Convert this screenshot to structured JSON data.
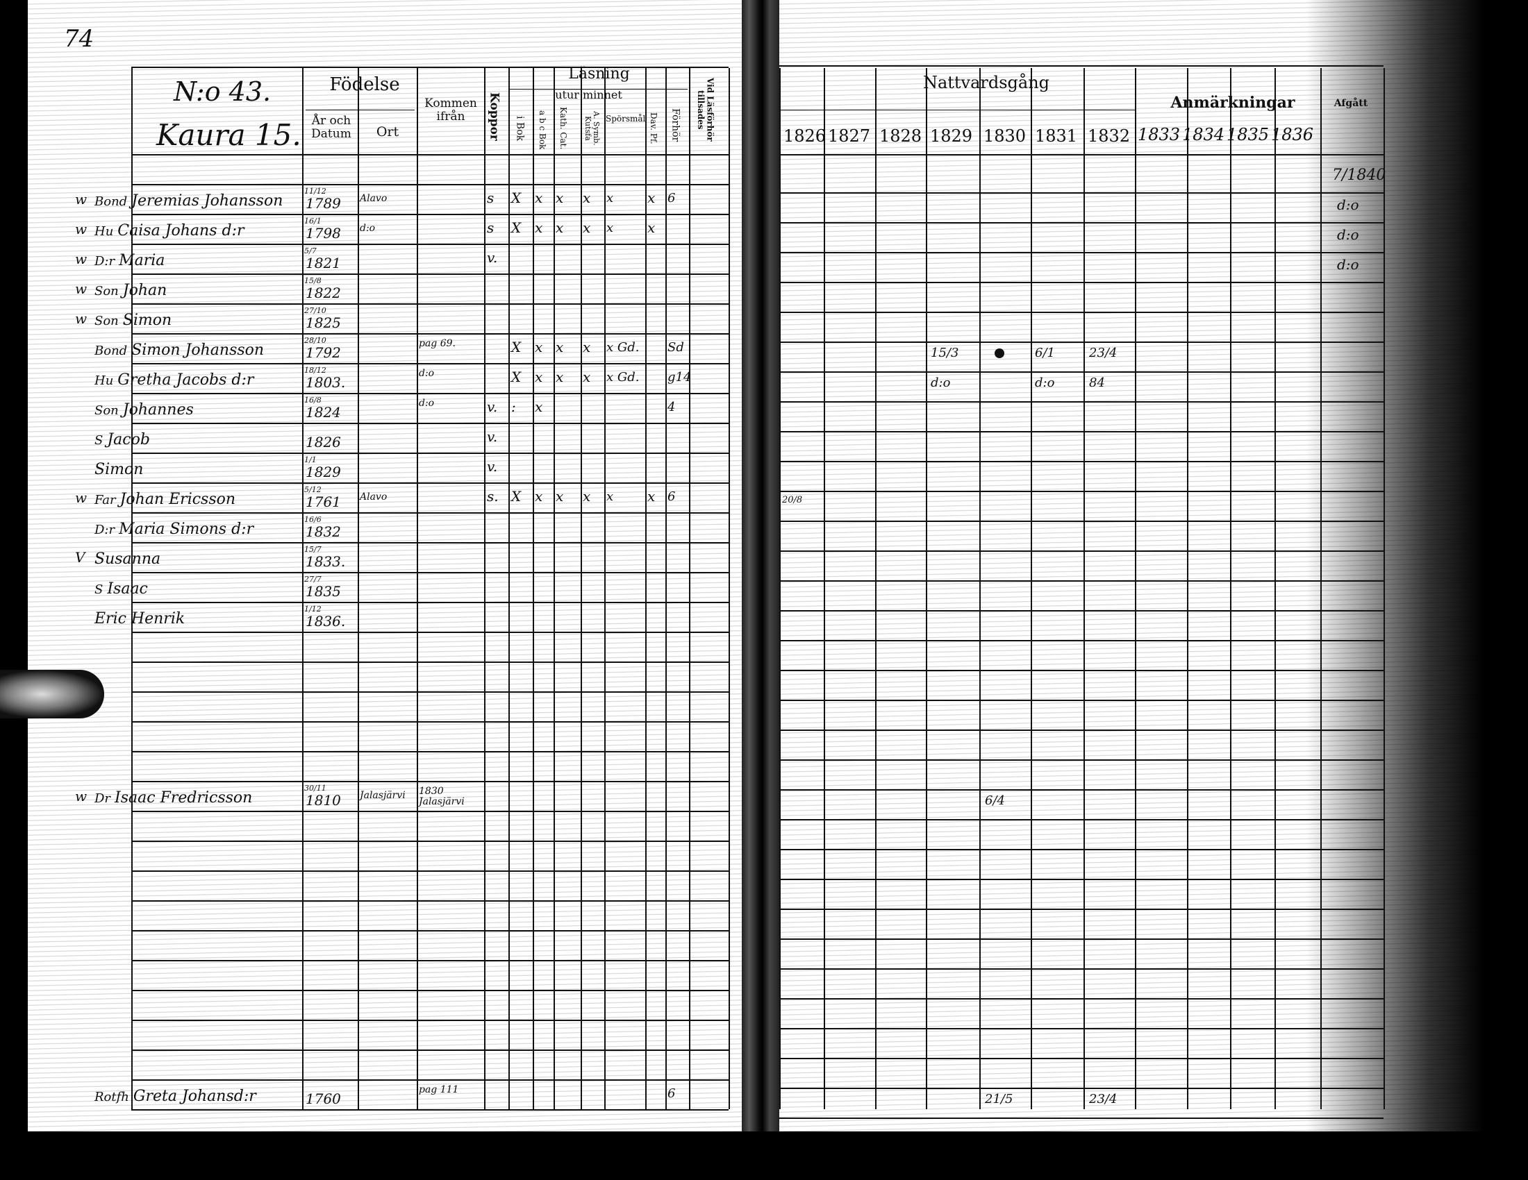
{
  "page_number": "74",
  "left_page": {
    "household_no": "N:o 43.",
    "farm": "Kaura 15.",
    "headers": {
      "fodelse": "Födelse",
      "ar_och_datum": "År och Datum",
      "ort": "Ort",
      "kommen_ifran": "Kommen ifrån",
      "koppor": "Koppor",
      "lasning": "Läsning",
      "utur_minnet": "utur minnet",
      "bok": "i Bok",
      "abc_bok": "a b c Bok",
      "kath": "Kath. Cat.",
      "symb": "A. Symb. Kutsfa",
      "sporsmal": "Spörsmål",
      "dav": "Dav. Pf.",
      "forhor": "Förhör",
      "vid_lasforhor": "Vid Läsförhör tillsades"
    },
    "rows": [
      {
        "marker": "w",
        "title": "Bond",
        "name": "Jeremias Johansson",
        "date": "11/12",
        "year": "1789",
        "ort": "Alavo",
        "kommen": "",
        "koppor": "s",
        "bok": "X",
        "abc": "x",
        "kath": "x",
        "symb": "x",
        "spors": "x",
        "dav": "x",
        "forhor": "6"
      },
      {
        "marker": "w",
        "title": "Hu",
        "name": "Caisa Johans d:r",
        "date": "16/1",
        "year": "1798",
        "ort": "d:o",
        "kommen": "",
        "koppor": "s",
        "bok": "X",
        "abc": "x",
        "kath": "x",
        "symb": "x",
        "spors": "x",
        "dav": "x",
        "forhor": ""
      },
      {
        "marker": "w",
        "title": "D:r",
        "name": "Maria",
        "date": "5/7",
        "year": "1821",
        "ort": "",
        "kommen": "",
        "koppor": "v.",
        "bok": "",
        "abc": "",
        "kath": "",
        "symb": "",
        "spors": "",
        "dav": "",
        "forhor": ""
      },
      {
        "marker": "w",
        "title": "Son",
        "name": "Johan",
        "date": "15/8",
        "year": "1822",
        "ort": "",
        "kommen": "",
        "koppor": "",
        "bok": "",
        "abc": "",
        "kath": "",
        "symb": "",
        "spors": "",
        "dav": "",
        "forhor": ""
      },
      {
        "marker": "w",
        "title": "Son",
        "name": "Simon",
        "date": "27/10",
        "year": "1825",
        "ort": "",
        "kommen": "",
        "koppor": "",
        "bok": "",
        "abc": "",
        "kath": "",
        "symb": "",
        "spors": "",
        "dav": "",
        "forhor": ""
      },
      {
        "marker": "",
        "title": "Bond",
        "name": "Simon Johansson",
        "date": "28/10",
        "year": "1792",
        "ort": "",
        "kommen": "pag 69.",
        "koppor": "",
        "bok": "X",
        "abc": "x",
        "kath": "x",
        "symb": "x",
        "spors": "x Gd.",
        "dav": "",
        "forhor": "Sd"
      },
      {
        "marker": "",
        "title": "Hu",
        "name": "Gretha Jacobs d:r",
        "date": "18/12",
        "year": "1803.",
        "ort": "",
        "kommen": "d:o",
        "koppor": "",
        "bok": "X",
        "abc": "x",
        "kath": "x",
        "symb": "x",
        "spors": "x Gd.",
        "dav": "",
        "forhor": "g14"
      },
      {
        "marker": "",
        "title": "Son",
        "name": "Johannes",
        "date": "16/8",
        "year": "1824",
        "ort": "",
        "kommen": "d:o",
        "koppor": "v.",
        "bok": ":",
        "abc": "x",
        "kath": "",
        "symb": "",
        "spors": "",
        "dav": "",
        "forhor": "4"
      },
      {
        "marker": "",
        "title": "S",
        "name": "Jacob",
        "date": "",
        "year": "1826",
        "ort": "",
        "kommen": "",
        "koppor": "v.",
        "bok": "",
        "abc": "",
        "kath": "",
        "symb": "",
        "spors": "",
        "dav": "",
        "forhor": ""
      },
      {
        "marker": "",
        "title": "",
        "name": "Simon",
        "date": "1/1",
        "year": "1829",
        "ort": "",
        "kommen": "",
        "koppor": "v.",
        "bok": "",
        "abc": "",
        "kath": "",
        "symb": "",
        "spors": "",
        "dav": "",
        "forhor": ""
      },
      {
        "marker": "w",
        "title": "Far",
        "name": "Johan Ericsson",
        "date": "5/12",
        "year": "1761",
        "ort": "Alavo",
        "kommen": "",
        "koppor": "s.",
        "bok": "X",
        "abc": "x",
        "kath": "x",
        "symb": "x",
        "spors": "x",
        "dav": "x",
        "forhor": "6"
      },
      {
        "marker": "",
        "title": "D:r",
        "name": "Maria Simons d:r",
        "date": "16/6",
        "year": "1832",
        "ort": "",
        "kommen": "",
        "koppor": "",
        "bok": "",
        "abc": "",
        "kath": "",
        "symb": "",
        "spors": "",
        "dav": "",
        "forhor": ""
      },
      {
        "marker": "V",
        "title": "",
        "name": "Susanna",
        "date": "15/7",
        "year": "1833.",
        "ort": "",
        "kommen": "",
        "koppor": "",
        "bok": "",
        "abc": "",
        "kath": "",
        "symb": "",
        "spors": "",
        "dav": "",
        "forhor": ""
      },
      {
        "marker": "",
        "title": "S",
        "name": "Isaac",
        "date": "27/7",
        "year": "1835",
        "ort": "",
        "kommen": "",
        "koppor": "",
        "bok": "",
        "abc": "",
        "kath": "",
        "symb": "",
        "spors": "",
        "dav": "",
        "forhor": ""
      },
      {
        "marker": "",
        "title": "",
        "name": "Eric Henrik",
        "date": "1/12",
        "year": "1836.",
        "ort": "",
        "kommen": "",
        "koppor": "",
        "bok": "",
        "abc": "",
        "kath": "",
        "symb": "",
        "spors": "",
        "dav": "",
        "forhor": ""
      }
    ],
    "lodger": {
      "marker": "w",
      "title": "Dr",
      "name": "Isaac Fredricsson",
      "date": "30/11",
      "year": "1810",
      "ort": "Jalasjärvi",
      "kommen": "1830 Jalasjärvi"
    },
    "last_row": {
      "title": "Rotfh",
      "name": "Greta Johansd:r",
      "year": "1760",
      "kommen": "pag 111",
      "forhor": "6"
    }
  },
  "right_page": {
    "headers": {
      "nattvardsgang": "Nattvardsgång",
      "anmarkningar": "Anmärkningar",
      "afgatt": "Afgått"
    },
    "years": [
      "1826",
      "1827",
      "1828",
      "1829",
      "1830",
      "1831",
      "1832"
    ],
    "remark_years": [
      "1833",
      "1834",
      "1835",
      "1836"
    ],
    "annotations": {
      "afgatt_top": "7/1840",
      "afgatt_ditto": [
        "d:o",
        "d:o",
        "d:o"
      ],
      "r6_1829": "15/3",
      "r6_1831": "6/1",
      "r6_1832": "23/4",
      "r7_1829": "d:o",
      "r7_1831": "d:o",
      "r7_1832": "84",
      "r11_1826": "20/8",
      "lodger_1830": "6/4",
      "last_1830": "21/5",
      "last_1832": "23/4"
    }
  }
}
